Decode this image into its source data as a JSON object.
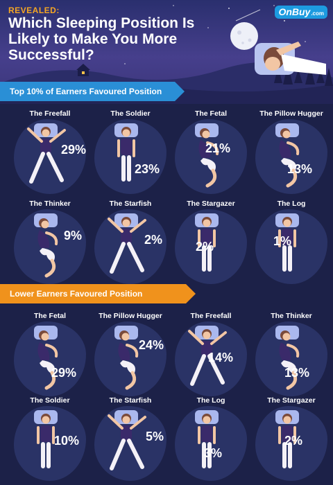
{
  "header": {
    "kicker": "REVEALED:",
    "headline": "Which Sleeping Position Is Likely to Make You More Successful?",
    "logo_main": "OnBuy",
    "logo_suffix": ".com"
  },
  "sections": [
    {
      "title": "Top 10% of Earners Favoured Position",
      "color": "#2a8fd6",
      "positions": [
        {
          "name": "The Freefall",
          "percent": "29%"
        },
        {
          "name": "The Soldier",
          "percent": "23%"
        },
        {
          "name": "The Fetal",
          "percent": "21%"
        },
        {
          "name": "The Pillow Hugger",
          "percent": "13%"
        },
        {
          "name": "The Thinker",
          "percent": "9%"
        },
        {
          "name": "The Starfish",
          "percent": "2%"
        },
        {
          "name": "The Stargazer",
          "percent": "2%"
        },
        {
          "name": "The Log",
          "percent": "1%"
        }
      ]
    },
    {
      "title": "Lower Earners Favoured Position",
      "color": "#f0921c",
      "positions": [
        {
          "name": "The Fetal",
          "percent": "29%"
        },
        {
          "name": "The Pillow Hugger",
          "percent": "24%"
        },
        {
          "name": "The Freefall",
          "percent": "14%"
        },
        {
          "name": "The Thinker",
          "percent": "13%"
        },
        {
          "name": "The Soldier",
          "percent": "10%"
        },
        {
          "name": "The Starfish",
          "percent": "5%"
        },
        {
          "name": "The Log",
          "percent": "3%"
        },
        {
          "name": "The Stargazer",
          "percent": "2%"
        }
      ]
    }
  ]
}
